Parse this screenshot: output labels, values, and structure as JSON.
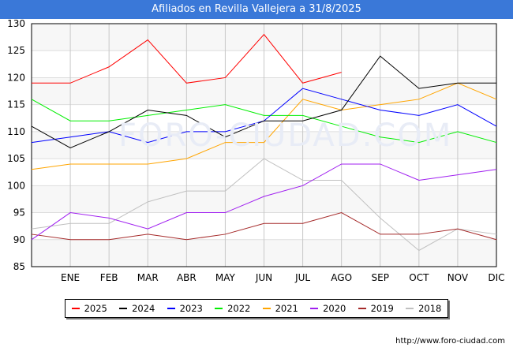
{
  "chart_data": {
    "type": "line",
    "title": "Afiliados en Revilla Vallejera a 31/8/2025",
    "xlabel": "",
    "ylabel": "",
    "x_labels": [
      "",
      "ENE",
      "FEB",
      "MAR",
      "ABR",
      "MAY",
      "JUN",
      "JUL",
      "AGO",
      "SEP",
      "OCT",
      "NOV",
      "DIC"
    ],
    "y_ticks": [
      85,
      90,
      95,
      100,
      105,
      110,
      115,
      120,
      125,
      130
    ],
    "ylim": [
      85,
      130
    ],
    "grid": true,
    "legend_position": "bottom",
    "series": [
      {
        "name": "2025",
        "color": "#ff0000",
        "values": [
          119,
          119,
          122,
          127,
          119,
          120,
          128,
          119,
          121
        ]
      },
      {
        "name": "2024",
        "color": "#000000",
        "values": [
          111,
          107,
          110,
          114,
          113,
          109,
          112,
          112,
          114,
          124,
          118,
          119,
          119
        ]
      },
      {
        "name": "2023",
        "color": "#0000ff",
        "values": [
          108,
          109,
          110,
          108,
          110,
          110,
          112,
          118,
          116,
          114,
          113,
          115,
          111
        ]
      },
      {
        "name": "2022",
        "color": "#00ee00",
        "values": [
          116,
          112,
          112,
          113,
          114,
          115,
          113,
          113,
          111,
          109,
          108,
          110,
          108
        ]
      },
      {
        "name": "2021",
        "color": "#ffa500",
        "values": [
          103,
          104,
          104,
          104,
          105,
          108,
          108,
          116,
          114,
          115,
          116,
          119,
          116
        ]
      },
      {
        "name": "2020",
        "color": "#a020f0",
        "values": [
          90,
          95,
          94,
          92,
          95,
          95,
          98,
          100,
          104,
          104,
          101,
          102,
          103
        ]
      },
      {
        "name": "2019",
        "color": "#a52a2a",
        "values": [
          91,
          90,
          90,
          91,
          90,
          91,
          93,
          93,
          95,
          91,
          91,
          92,
          90
        ]
      },
      {
        "name": "2018",
        "color": "#c0c0c0",
        "values": [
          92,
          93,
          93,
          97,
          99,
          99,
          105,
          101,
          101,
          94,
          88,
          92,
          91
        ]
      }
    ]
  },
  "watermark": "FORO-CIUDAD.COM",
  "source": "http://www.foro-ciudad.com"
}
